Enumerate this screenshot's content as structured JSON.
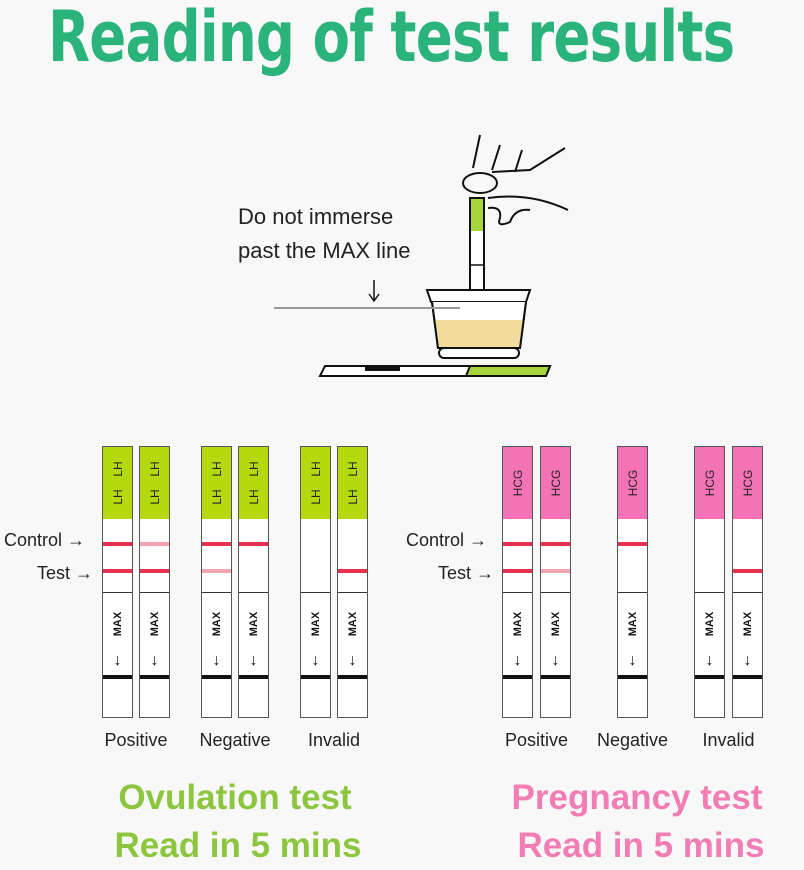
{
  "title": "Reading of test results",
  "illustration": {
    "note_line1": "Do not immerse",
    "note_line2": "past the MAX line"
  },
  "colors": {
    "title": "#2bb37c",
    "ovulation": "#8cc63f",
    "pregnancy": "#f27cb4",
    "lh_cap": "#b5d80f",
    "hcg_cap": "#f472b6",
    "line_strong": "#e8314e",
    "line_faint": "#f4a3b1",
    "urine": "#f1dc9e"
  },
  "line_labels": {
    "control": "Control",
    "test": "Test"
  },
  "max_label": "MAX",
  "panels": [
    {
      "name": "ovulation",
      "cap_text": "LH",
      "groups": [
        {
          "label": "Positive",
          "strips": [
            {
              "control": "strong",
              "test": "strong"
            },
            {
              "control": "faint",
              "test": "strong"
            }
          ]
        },
        {
          "label": "Negative",
          "strips": [
            {
              "control": "strong",
              "test": "faint"
            },
            {
              "control": "strong",
              "test": "none"
            }
          ]
        },
        {
          "label": "Invalid",
          "strips": [
            {
              "control": "none",
              "test": "none"
            },
            {
              "control": "none",
              "test": "strong"
            }
          ]
        }
      ],
      "heading": "Ovulation test",
      "subheading": "Read in 5 mins"
    },
    {
      "name": "pregnancy",
      "cap_text": "HCG",
      "groups": [
        {
          "label": "Positive",
          "strips": [
            {
              "control": "strong",
              "test": "strong"
            },
            {
              "control": "strong",
              "test": "faint"
            }
          ]
        },
        {
          "label": "Negative",
          "strips": [
            {
              "control": "strong",
              "test": "none"
            }
          ]
        },
        {
          "label": "Invalid",
          "strips": [
            {
              "control": "none",
              "test": "none"
            },
            {
              "control": "none",
              "test": "strong"
            }
          ]
        }
      ],
      "heading": "Pregnancy test",
      "subheading": "Read in 5 mins"
    }
  ]
}
